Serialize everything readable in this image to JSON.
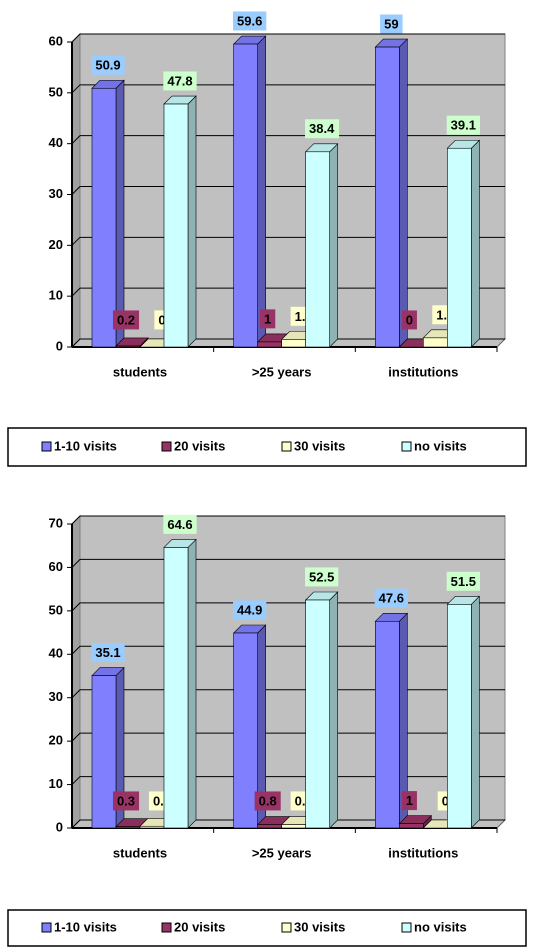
{
  "chart_data": [
    {
      "type": "bar",
      "categories": [
        "students",
        ">25 years",
        "institutions"
      ],
      "series": [
        {
          "name": "1-10 visits",
          "color": "#8080ff",
          "label_color": "#99ccff",
          "values": [
            50.9,
            59.6,
            59
          ]
        },
        {
          "name": "20 visits",
          "color": "#993366",
          "label_color": "#993366",
          "values": [
            0.2,
            1,
            0
          ]
        },
        {
          "name": "30 visits",
          "color": "#ffffcc",
          "label_color": "#ffffcc",
          "values": [
            0,
            1.5,
            1.8
          ]
        },
        {
          "name": "no visits",
          "color": "#ccffff",
          "label_color": "#ccffcc",
          "values": [
            47.8,
            38.4,
            39.1
          ]
        }
      ],
      "ylim": [
        0,
        60
      ],
      "yticks": [
        0,
        10,
        20,
        30,
        40,
        50,
        60
      ],
      "grid": true,
      "legend": "bottom"
    },
    {
      "type": "bar",
      "categories": [
        "students",
        ">25 years",
        "institutions"
      ],
      "series": [
        {
          "name": "1-10 visits",
          "color": "#8080ff",
          "label_color": "#99ccff",
          "values": [
            35.1,
            44.9,
            47.6
          ]
        },
        {
          "name": "20 visits",
          "color": "#993366",
          "label_color": "#993366",
          "values": [
            0.3,
            0.8,
            1
          ]
        },
        {
          "name": "30 visits",
          "color": "#ffffcc",
          "label_color": "#ffffcc",
          "values": [
            0.4,
            0.8,
            0
          ]
        },
        {
          "name": "no visits",
          "color": "#ccffff",
          "label_color": "#ccffcc",
          "values": [
            64.6,
            52.5,
            51.5
          ]
        }
      ],
      "ylim": [
        0,
        70
      ],
      "yticks": [
        0,
        10,
        20,
        30,
        40,
        50,
        60,
        70
      ],
      "grid": true,
      "legend": "bottom"
    }
  ]
}
